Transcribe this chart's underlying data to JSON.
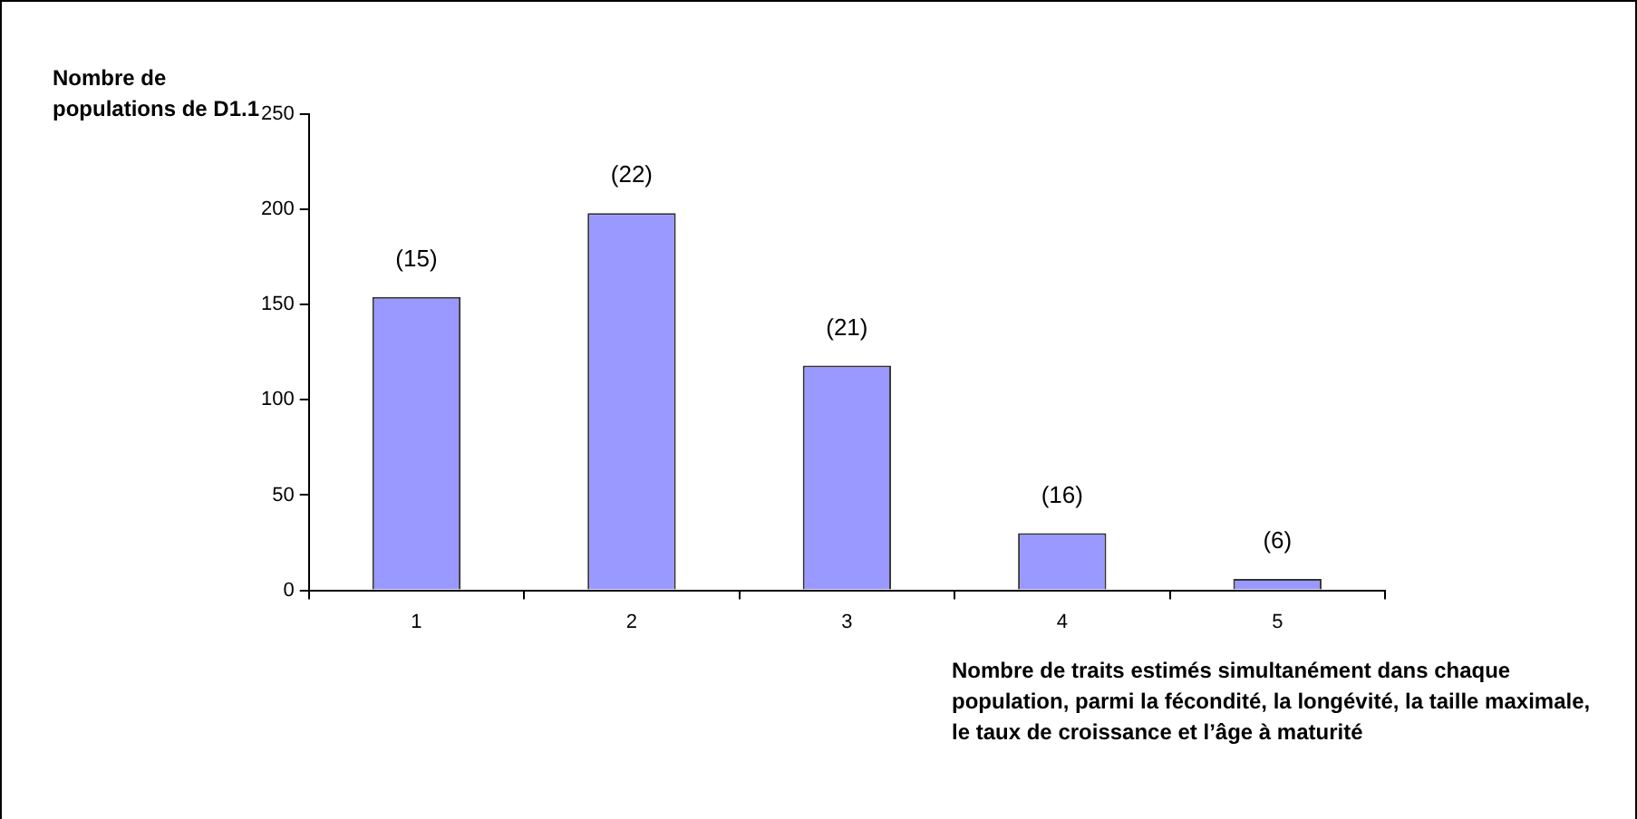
{
  "chart_data": {
    "type": "bar",
    "ylabel": "Nombre de populations de D1.1",
    "xlabel": "Nombre de traits estimés simultanément dans chaque population, parmi la fécondité, la longévité, la taille maximale, le taux de croissance et l’âge à maturité",
    "categories": [
      "1",
      "2",
      "3",
      "4",
      "5"
    ],
    "values": [
      154,
      198,
      118,
      30,
      6
    ],
    "annotations": [
      {
        "text": "(15)",
        "x": "1",
        "y": 154
      },
      {
        "text": "(22)",
        "x": "2",
        "y": 198
      },
      {
        "text": "(21)",
        "x": "3",
        "y": 118
      },
      {
        "text": "(16)",
        "x": "4",
        "y": 30
      },
      {
        "text": "(6)",
        "x": "5",
        "y": 6
      }
    ],
    "color": "#9999ff",
    "ylim": [
      0,
      250
    ],
    "yticks": [
      0,
      50,
      100,
      150,
      200,
      250
    ],
    "grid": false,
    "legend": false
  }
}
